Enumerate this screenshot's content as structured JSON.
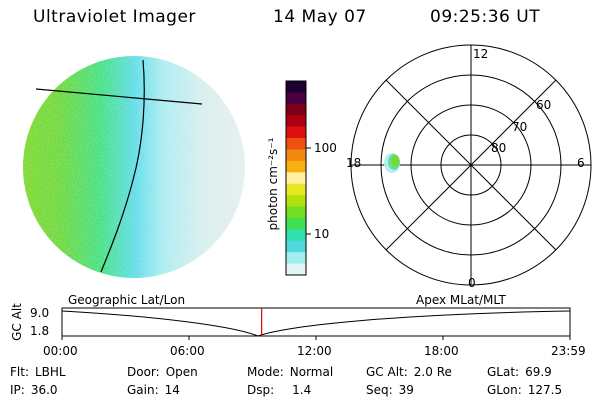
{
  "header": {
    "title": "Ultraviolet Imager",
    "date": "14 May 07",
    "time": "09:25:36 UT"
  },
  "colorbar": {
    "unit_label": "photon cm⁻²s⁻¹",
    "ticks": [
      "100",
      "10"
    ],
    "colors": [
      "#1a0030",
      "#4a0040",
      "#7a0018",
      "#b00010",
      "#e01010",
      "#f05010",
      "#f08a10",
      "#f8b010",
      "#fff0a0",
      "#e8e820",
      "#b0e010",
      "#70e020",
      "#40e050",
      "#30e0b0",
      "#50d8e0",
      "#a0eef0",
      "#e0f4f4"
    ]
  },
  "polar": {
    "mlt_labels": {
      "top": "12",
      "left": "18",
      "right": "6",
      "bottom": "0"
    },
    "lat_labels": [
      "60",
      "70",
      "80"
    ]
  },
  "strip": {
    "left_title": "Geographic Lat/Lon",
    "right_title": "Apex MLat/MLT",
    "y_axis_label": "GC Alt",
    "y_max": "9.0",
    "y_min": "1.8",
    "x_ticks": [
      "00:00",
      "06:00",
      "12:00",
      "18:00",
      "23:59"
    ],
    "current_time_fraction": 0.393,
    "marker_color": "#dd0000"
  },
  "info": {
    "row1": {
      "flt_label": "Flt:",
      "flt_value": "LBHL",
      "door_label": "Door:",
      "door_value": "Open",
      "mode_label": "Mode:",
      "mode_value": "Normal",
      "gcalt_label": "GC Alt:",
      "gcalt_value": "2.0 Re",
      "glat_label": "GLat:",
      "glat_value": "69.9"
    },
    "row2": {
      "ip_label": "IP:",
      "ip_value": "36.0",
      "gain_label": "Gain:",
      "gain_value": "14",
      "dsp_label": "Dsp:",
      "dsp_value": "1.4",
      "seq_label": "Seq:",
      "seq_value": "39",
      "glon_label": "GLon:",
      "glon_value": "127.5"
    }
  }
}
